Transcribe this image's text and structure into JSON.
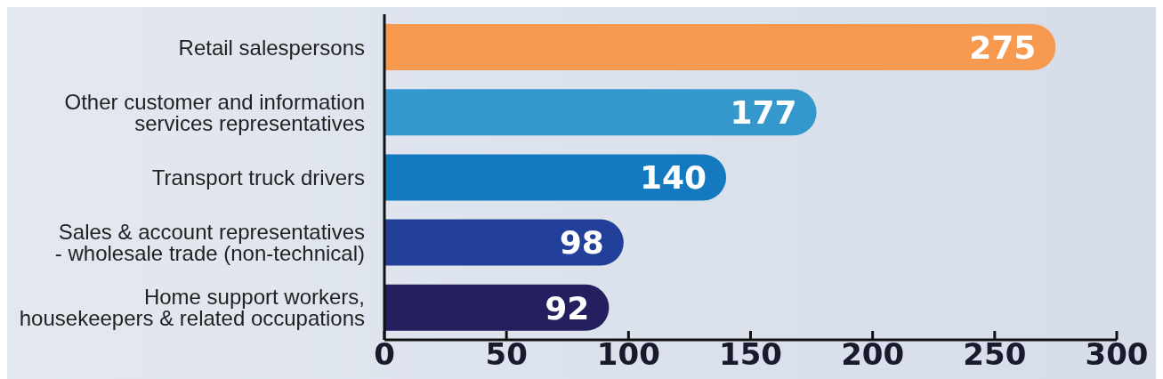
{
  "chart_data": {
    "type": "bar",
    "orientation": "horizontal",
    "categories": [
      "Retail salespersons",
      "Other customer and information services representatives",
      "Transport truck drivers",
      "Sales & account representatives - wholesale trade (non-technical)",
      "Home support workers, housekeepers & related occupations"
    ],
    "values": [
      275,
      177,
      140,
      98,
      92
    ],
    "colors": [
      "#f7994f",
      "#3498cc",
      "#1479be",
      "#22409a",
      "#241f5e"
    ],
    "xlim": [
      0,
      300
    ],
    "xticks": [
      0,
      50,
      100,
      150,
      200,
      250,
      300
    ],
    "data_labels": true,
    "grid": false
  }
}
